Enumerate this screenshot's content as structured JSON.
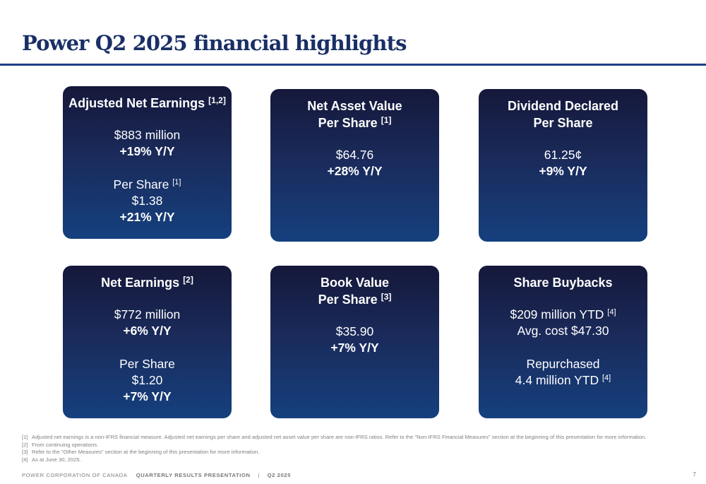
{
  "title": "Power Q2 2025 financial highlights",
  "cards": {
    "adjusted_net_earnings": {
      "title": "Adjusted Net Earnings",
      "title_ref": "[1,2]",
      "value": "$883 million",
      "change": "+19% Y/Y",
      "per_share_label": "Per Share",
      "per_share_ref": "[1]",
      "per_share_value": "$1.38",
      "per_share_change": "+21% Y/Y"
    },
    "net_asset_value": {
      "title_line1": "Net Asset Value",
      "title_line2": "Per Share",
      "title_ref": "[1]",
      "value": "$64.76",
      "change": "+28% Y/Y"
    },
    "dividend": {
      "title_line1": "Dividend Declared",
      "title_line2": "Per Share",
      "value": "61.25¢",
      "change": "+9% Y/Y"
    },
    "net_earnings": {
      "title": "Net Earnings",
      "title_ref": "[2]",
      "value": "$772 million",
      "change": "+6% Y/Y",
      "per_share_label": "Per Share",
      "per_share_value": "$1.20",
      "per_share_change": "+7% Y/Y"
    },
    "book_value": {
      "title_line1": "Book Value",
      "title_line2": "Per Share",
      "title_ref": "[3]",
      "value": "$35.90",
      "change": "+7% Y/Y"
    },
    "share_buybacks": {
      "title": "Share Buybacks",
      "amount": "$209 million YTD",
      "amount_ref": "[4]",
      "avg_cost": "Avg. cost $47.30",
      "repurchased_label": "Repurchased",
      "repurchased_value": "4.4 million YTD",
      "repurchased_ref": "[4]"
    }
  },
  "footnotes": [
    {
      "num": "[1]",
      "text": "Adjusted net earnings is a non-IFRS financial measure. Adjusted net earnings per share and adjusted net asset value per share are non-IFRS ratios. Refer to the \"Non-IFRS Financial Measures\" section at the beginning of this presentation for more information."
    },
    {
      "num": "[2]",
      "text": "From continuing operations."
    },
    {
      "num": "[3]",
      "text": "Refer to the \"Other Measures\" section at the beginning of this presentation for more information."
    },
    {
      "num": "[4]",
      "text": "As at June 30, 2025."
    }
  ],
  "footer": {
    "company": "POWER CORPORATION OF CANADA",
    "presentation": "QUARTERLY RESULTS PRESENTATION",
    "separator": "|",
    "quarter": "Q2 2025",
    "page": "7"
  },
  "colors": {
    "title": "#1a2f66",
    "rule": "#1c3f86",
    "card_top": "#15183a",
    "card_bottom": "#15407e"
  }
}
